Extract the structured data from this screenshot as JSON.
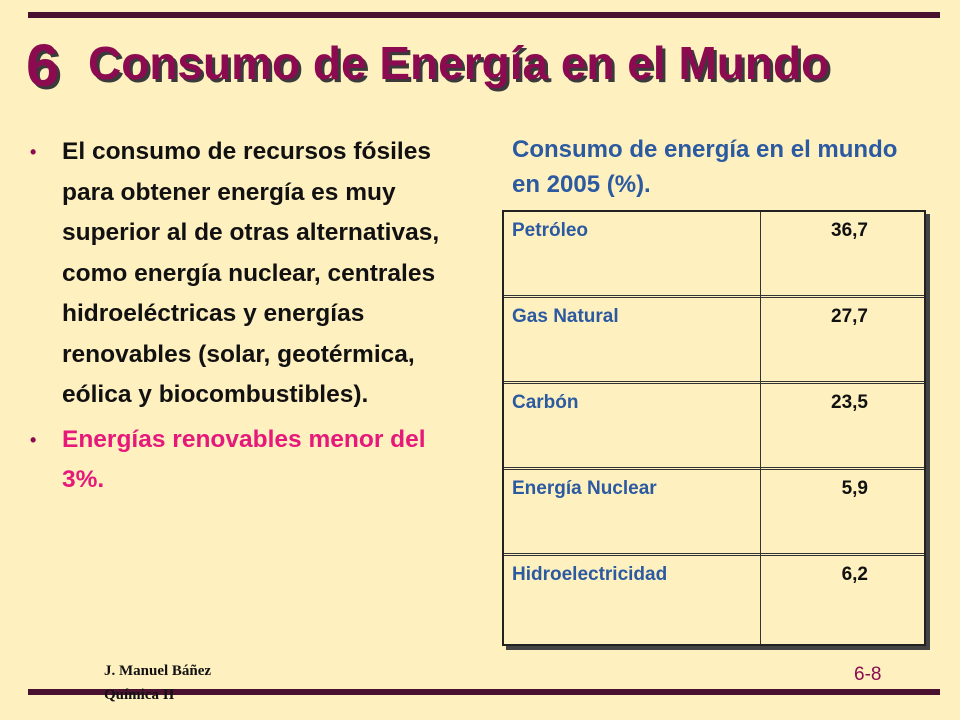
{
  "slide": {
    "number": "6",
    "title": "Consumo de Energía en el Mundo"
  },
  "bullets": [
    "El consumo de recursos fósiles para obtener energía es muy superior al de otras alternativas, como energía nuclear, centrales hidroeléctricas y energías renovables (solar, geotérmica, eólica y biocombustibles).",
    "Energías renovables menor del 3%."
  ],
  "table": {
    "caption": "Consumo de energía en el mundo en 2005 (%).",
    "rows": [
      {
        "name": "Petróleo",
        "value": "36,7"
      },
      {
        "name": "Gas Natural",
        "value": "27,7"
      },
      {
        "name": "Carbón",
        "value": "23,5"
      },
      {
        "name": "Energía Nuclear",
        "value": "5,9"
      },
      {
        "name": "Hidroelectricidad",
        "value": "6,2"
      }
    ]
  },
  "footer": {
    "author": "J. Manuel Báñez",
    "course": "Química II",
    "page": "6-8"
  },
  "colors": {
    "background": "#FFF0C0",
    "title": "#8B0A50",
    "caption": "#2B5AA0",
    "highlight": "#E6197A"
  }
}
